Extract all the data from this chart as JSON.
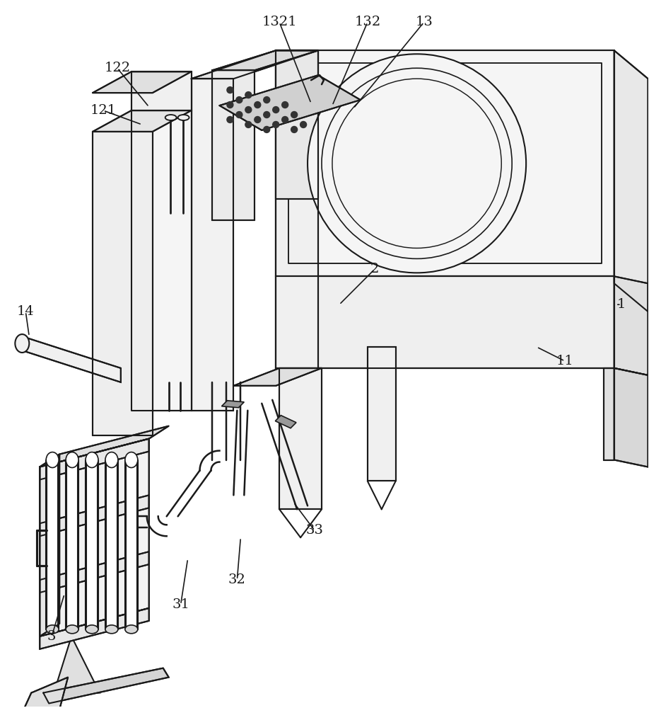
{
  "bg": "#ffffff",
  "lc": "#1a1a1a",
  "lw": 1.5,
  "fs": 14,
  "fig_w": 9.18,
  "fig_h": 10.0,
  "dpi": 100
}
